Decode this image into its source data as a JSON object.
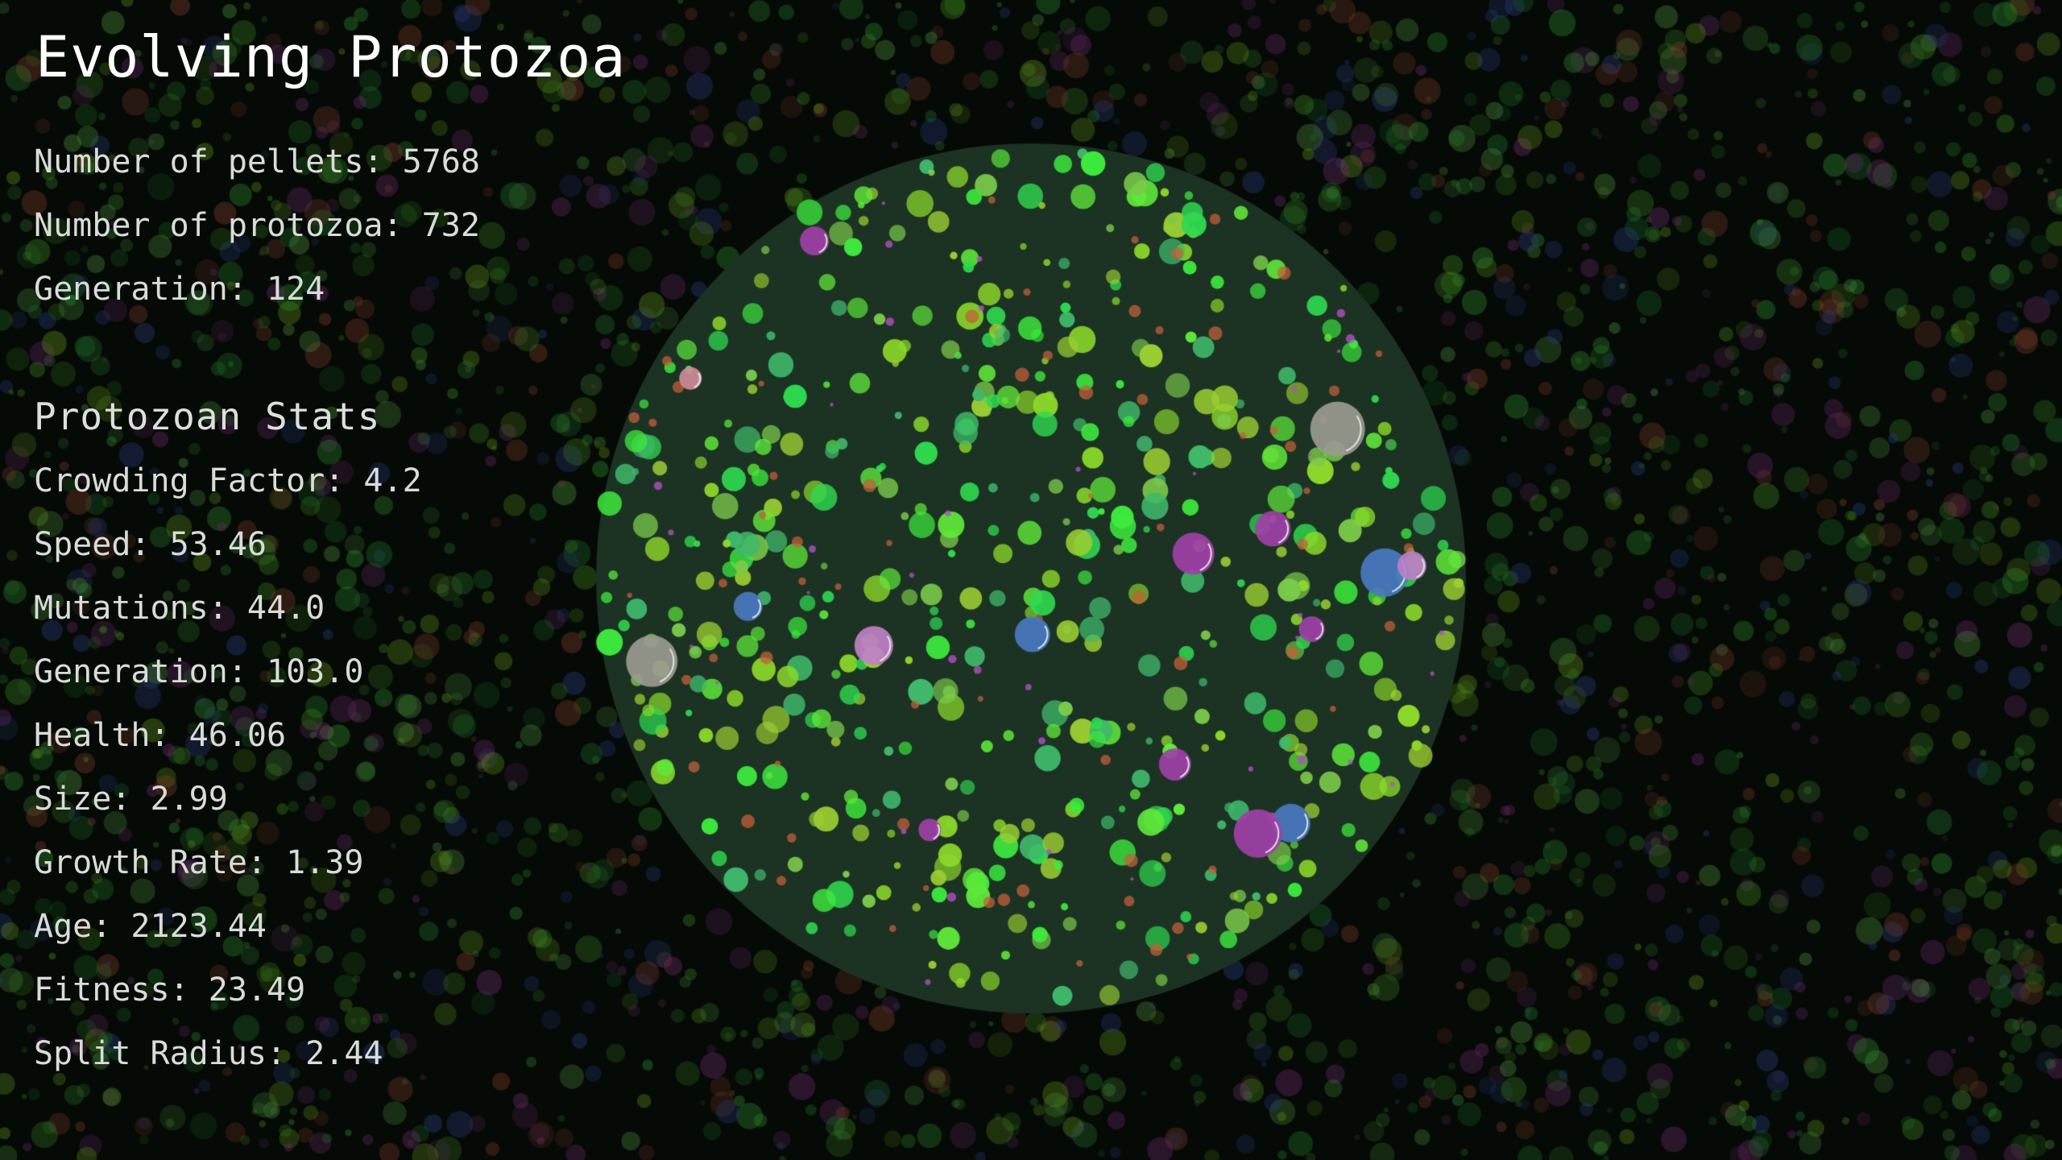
{
  "title": "Evolving Protozoa",
  "counters": [
    {
      "label": "Number of pellets:",
      "value": "5768"
    },
    {
      "label": "Number of protozoa:",
      "value": "732"
    },
    {
      "label": "Generation:",
      "value": "124"
    }
  ],
  "stats_title": "Protozoan Stats",
  "stats": [
    {
      "label": "Crowding Factor:",
      "value": "4.2"
    },
    {
      "label": "Speed:",
      "value": "53.46"
    },
    {
      "label": "Mutations:",
      "value": "44.0"
    },
    {
      "label": "Generation:",
      "value": "103.0"
    },
    {
      "label": "Health:",
      "value": "46.06"
    },
    {
      "label": "Size:",
      "value": "2.99"
    },
    {
      "label": "Growth Rate:",
      "value": "1.39"
    },
    {
      "label": "Age:",
      "value": "2123.44"
    },
    {
      "label": "Fitness:",
      "value": "23.49"
    },
    {
      "label": "Split Radius:",
      "value": "2.44"
    }
  ],
  "colors": {
    "background": "#050a06",
    "tank": "#1c3324",
    "pellet_green": "#3de93d",
    "pellet_lime": "#8bd82a",
    "protozoa_purple": "#a040a8",
    "protozoa_blue": "#4a78c0",
    "protozoa_grey": "#9a9a90",
    "pellet_orange": "#c0603a"
  }
}
